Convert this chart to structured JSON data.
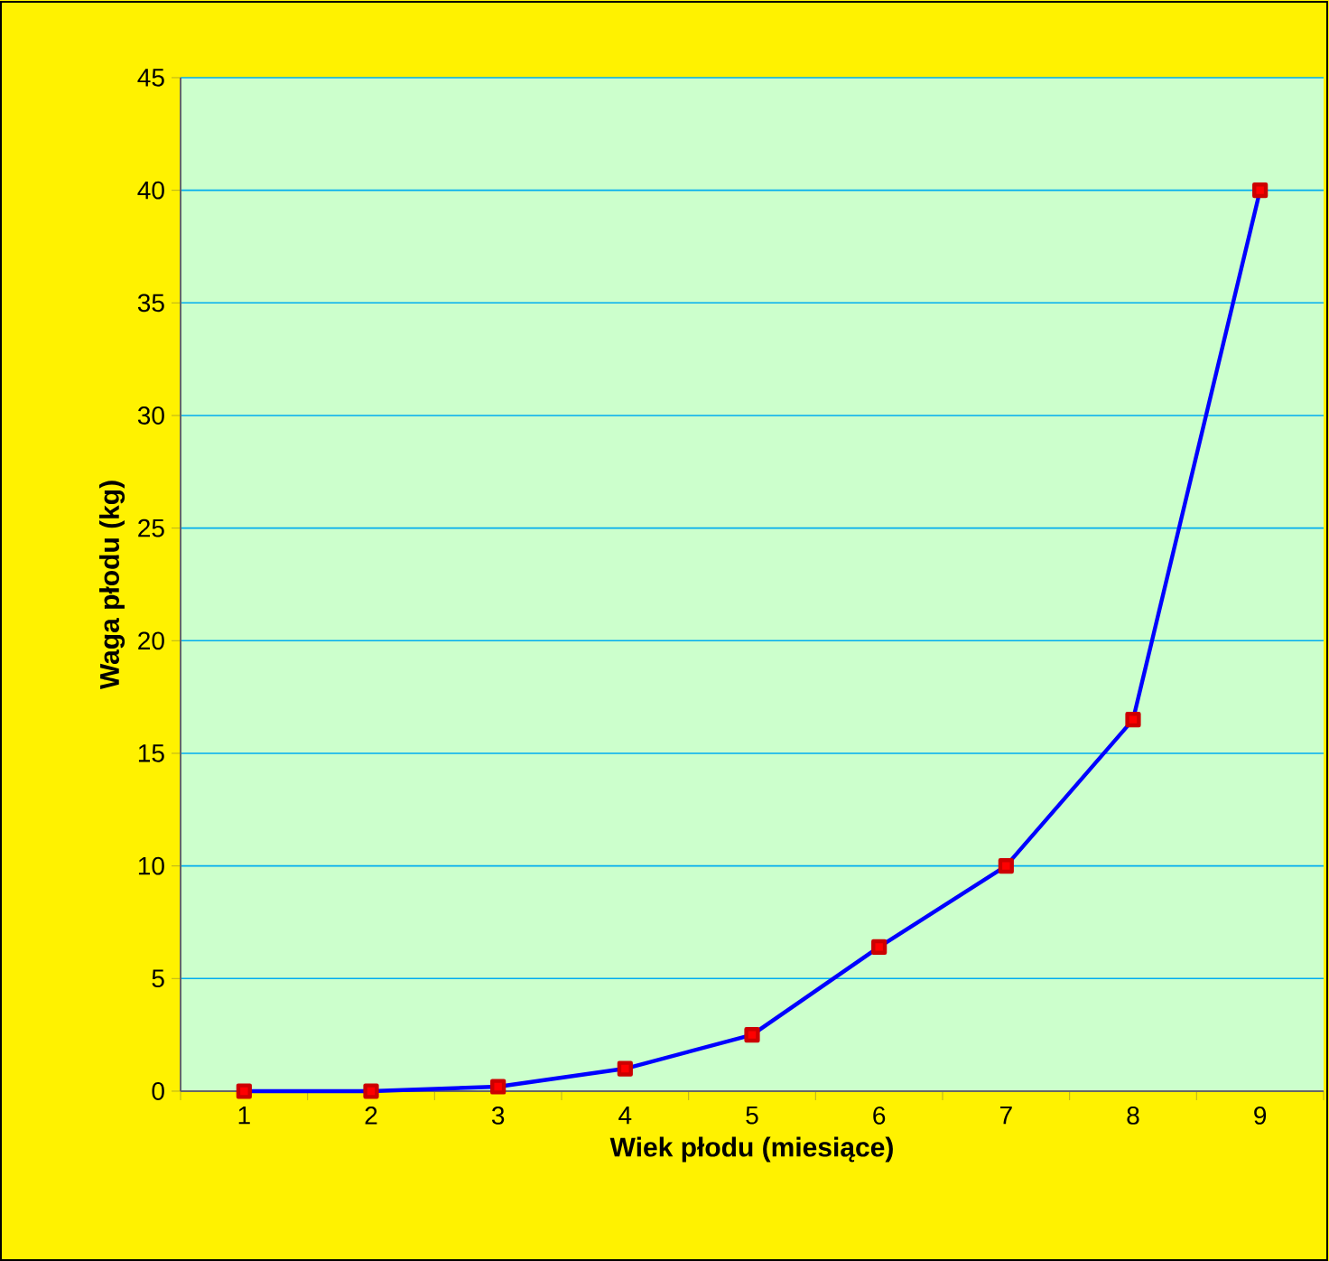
{
  "chart_data": {
    "type": "line",
    "xlabel": "Wiek płodu (miesiące)",
    "ylabel": "Waga płodu (kg)",
    "categories": [
      "1",
      "2",
      "3",
      "4",
      "5",
      "6",
      "7",
      "8",
      "9"
    ],
    "series": [
      {
        "color": "#0000ff",
        "values": [
          0,
          0,
          0.2,
          1,
          2.5,
          6.4,
          10,
          16.5,
          40
        ]
      }
    ],
    "ylim": [
      0,
      45
    ],
    "yticks": [
      0,
      5,
      10,
      15,
      20,
      25,
      30,
      35,
      40,
      45
    ],
    "grid": "y",
    "marker": "square",
    "line_style": "solid"
  }
}
